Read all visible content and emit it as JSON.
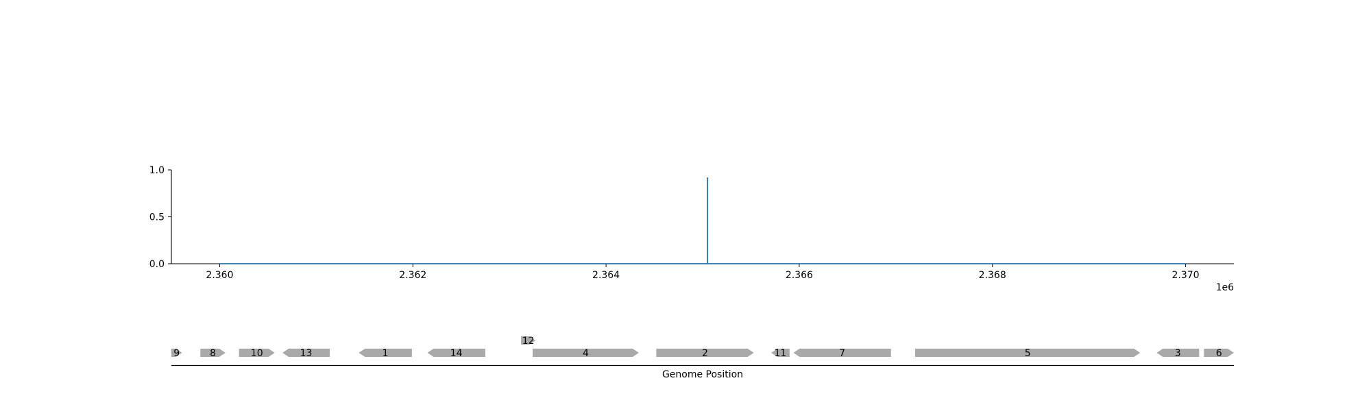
{
  "chart_data": [
    {
      "type": "line",
      "title": "",
      "xlabel": "",
      "ylabel": "",
      "x_offset_label": "1e6",
      "xlim": [
        2359500,
        2370500
      ],
      "ylim": [
        0,
        1.0
      ],
      "x_ticks": [
        2360000,
        2362000,
        2364000,
        2366000,
        2368000,
        2370000
      ],
      "x_tick_labels": [
        "2.360",
        "2.362",
        "2.364",
        "2.366",
        "2.368",
        "2.370"
      ],
      "y_ticks": [
        0,
        0.5,
        1.0
      ],
      "y_tick_labels": [
        "0.0",
        "0.5",
        "1.0"
      ],
      "grid": false,
      "series": [
        {
          "color": "#1f77b4",
          "x": [
            2360000,
            2365050,
            2365050,
            2365050,
            2370000
          ],
          "y": [
            0,
            0,
            0.92,
            0,
            0
          ]
        }
      ]
    },
    {
      "type": "gene-track",
      "xlabel": "Genome Position",
      "xlim": [
        2359500,
        2370500
      ],
      "feature_color": "#a9a9a9",
      "features": [
        {
          "label": "9",
          "start": 2359500,
          "end": 2359610,
          "strand": 1,
          "row": 0
        },
        {
          "label": "8",
          "start": 2359800,
          "end": 2360060,
          "strand": 1,
          "row": 0
        },
        {
          "label": "10",
          "start": 2360200,
          "end": 2360570,
          "strand": 1,
          "row": 0
        },
        {
          "label": "13",
          "start": 2360650,
          "end": 2361140,
          "strand": -1,
          "row": 0
        },
        {
          "label": "1",
          "start": 2361440,
          "end": 2361990,
          "strand": -1,
          "row": 0
        },
        {
          "label": "14",
          "start": 2362150,
          "end": 2362750,
          "strand": -1,
          "row": 0
        },
        {
          "label": "12",
          "start": 2363120,
          "end": 2363270,
          "strand": 1,
          "row": 1
        },
        {
          "label": "4",
          "start": 2363240,
          "end": 2364340,
          "strand": 1,
          "row": 0
        },
        {
          "label": "2",
          "start": 2364520,
          "end": 2365530,
          "strand": 1,
          "row": 0
        },
        {
          "label": "11",
          "start": 2365710,
          "end": 2365900,
          "strand": -1,
          "row": 0
        },
        {
          "label": "7",
          "start": 2365940,
          "end": 2366950,
          "strand": -1,
          "row": 0
        },
        {
          "label": "5",
          "start": 2367200,
          "end": 2369530,
          "strand": 1,
          "row": 0
        },
        {
          "label": "3",
          "start": 2369700,
          "end": 2370140,
          "strand": -1,
          "row": 0
        },
        {
          "label": "6",
          "start": 2370190,
          "end": 2370500,
          "strand": 1,
          "row": 0
        }
      ]
    }
  ]
}
